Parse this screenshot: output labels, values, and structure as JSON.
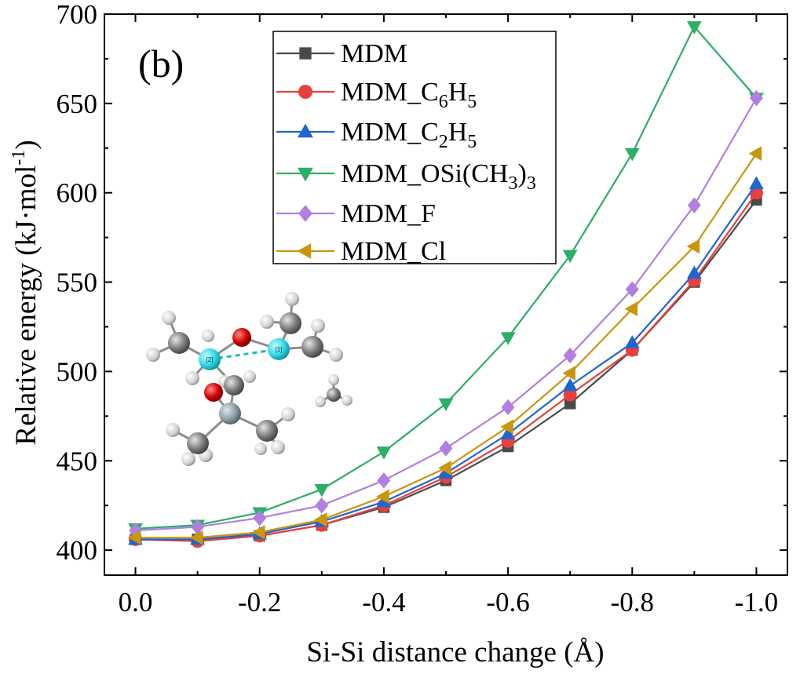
{
  "chart_data": {
    "type": "line",
    "panel_label": "(b)",
    "xlabel": "Si-Si distance change (Å)",
    "ylabel_main": "Relative energy (kJ·mol",
    "ylabel_sup": "-1",
    "ylabel_end": ")",
    "x": [
      0.0,
      -0.1,
      -0.2,
      -0.3,
      -0.4,
      -0.5,
      -0.6,
      -0.7,
      -0.8,
      -0.9,
      -1.0
    ],
    "xlim": [
      0.05,
      -1.05
    ],
    "ylim": [
      386,
      700
    ],
    "x_ticks": [
      0.0,
      -0.2,
      -0.4,
      -0.6,
      -0.8,
      -1.0
    ],
    "x_tick_labels": [
      "0.0",
      "-0.2",
      "-0.4",
      "-0.6",
      "-0.8",
      "-1.0"
    ],
    "y_ticks": [
      400,
      450,
      500,
      550,
      600,
      650,
      700
    ],
    "y_tick_labels": [
      "400",
      "450",
      "500",
      "550",
      "600",
      "650",
      "700"
    ],
    "grid": false,
    "legend_position": "top-center",
    "series": [
      {
        "name": "MDM",
        "legend": [
          {
            "t": "MDM"
          }
        ],
        "color": "#4a4a4a",
        "marker": "square",
        "values": [
          406,
          406,
          408,
          414,
          424,
          439,
          458,
          482,
          512,
          550,
          596
        ]
      },
      {
        "name": "MDM_C6H5",
        "legend": [
          {
            "t": "MDM_C"
          },
          {
            "t": "6",
            "sub": true
          },
          {
            "t": "H"
          },
          {
            "t": "5",
            "sub": true
          }
        ],
        "color": "#e8413c",
        "marker": "circle",
        "values": [
          406,
          405,
          408,
          414,
          425,
          441,
          461,
          487,
          512,
          551,
          600
        ]
      },
      {
        "name": "MDM_C2H5",
        "legend": [
          {
            "t": "MDM_C"
          },
          {
            "t": "2",
            "sub": true
          },
          {
            "t": "H"
          },
          {
            "t": "5",
            "sub": true
          }
        ],
        "color": "#1f66d1",
        "marker": "triangle-up",
        "values": [
          406,
          406,
          409,
          416,
          427,
          443,
          465,
          492,
          516,
          555,
          605
        ]
      },
      {
        "name": "MDM_OSi(CH3)3",
        "legend": [
          {
            "t": "MDM_OSi(CH"
          },
          {
            "t": "3",
            "sub": true
          },
          {
            "t": ")"
          },
          {
            "t": "3",
            "sub": true
          }
        ],
        "color": "#2bae66",
        "marker": "triangle-down",
        "values": [
          412,
          414,
          421,
          434,
          455,
          482,
          519,
          565,
          622,
          693,
          653
        ]
      },
      {
        "name": "MDM_F",
        "legend": [
          {
            "t": "MDM_F"
          }
        ],
        "color": "#b07fe0",
        "marker": "diamond",
        "values": [
          411,
          413,
          418,
          425,
          439,
          457,
          480,
          509,
          546,
          593,
          653
        ]
      },
      {
        "name": "MDM_Cl",
        "legend": [
          {
            "t": "MDM_Cl"
          }
        ],
        "color": "#c9960c",
        "marker": "triangle-left",
        "values": [
          407,
          407,
          410,
          417,
          430,
          446,
          469,
          499,
          535,
          570,
          622
        ]
      }
    ],
    "inset": {
      "atom_labels": [
        "[2]",
        "[1]"
      ]
    }
  }
}
